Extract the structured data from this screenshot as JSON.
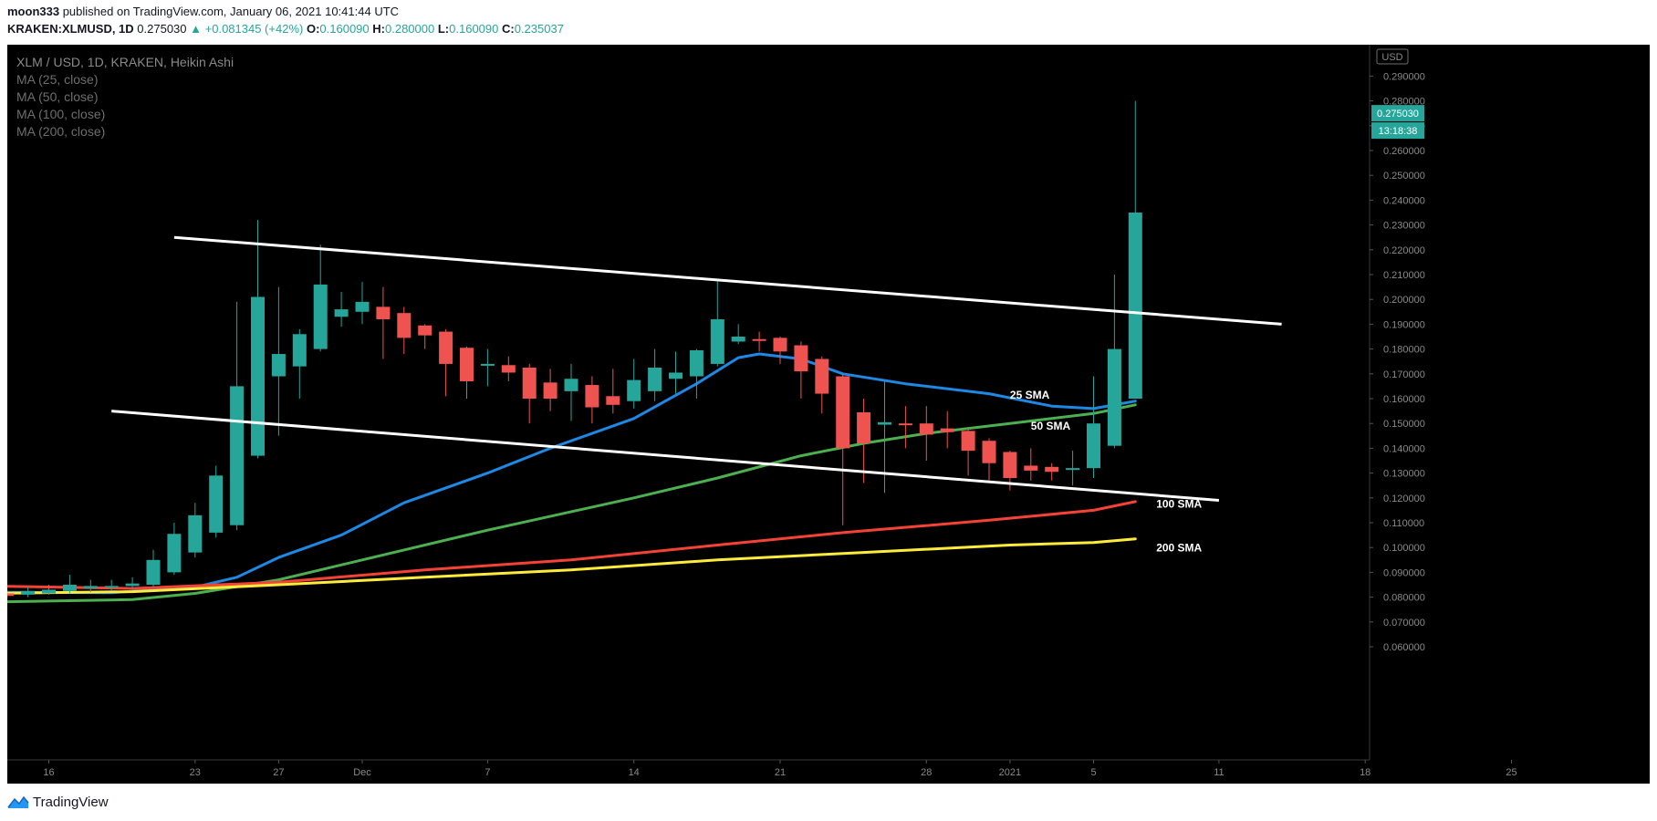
{
  "header": {
    "author": "moon333",
    "published": "published on TradingView.com, January 06, 2021 10:41:44 UTC",
    "symbol": "KRAKEN:XLMUSD, 1D",
    "last_price": "0.275030",
    "change": "▲ +0.081345 (+42%)",
    "open_label": "O:",
    "open": "0.160090",
    "high_label": "H:",
    "high": "0.280000",
    "low_label": "L:",
    "low": "0.160090",
    "close_label": "C:",
    "close": "0.235037"
  },
  "legend": {
    "main": "XLM / USD, 1D, KRAKEN, Heikin Ashi",
    "indicators": [
      "MA (25, close)",
      "MA (50, close)",
      "MA (100, close)",
      "MA (200, close)"
    ]
  },
  "price_axis": {
    "currency_tag": "USD",
    "current_price_tag": "0.275030",
    "countdown_tag": "13:18:38"
  },
  "annotations": [
    "25 SMA",
    "50 SMA",
    "100 SMA",
    "200 SMA"
  ],
  "footer": {
    "brand": "TradingView"
  },
  "colors": {
    "background": "#000000",
    "up": "#26a69a",
    "down": "#ef5350",
    "sma25": "#1e88e5",
    "sma50": "#4caf50",
    "sma100": "#f44336",
    "sma200": "#ffeb3b",
    "trendline": "#ffffff"
  },
  "chart_data": {
    "type": "candlestick",
    "chart_style": "Heikin Ashi",
    "title": "XLM / USD, 1D, KRAKEN, Heikin Ashi",
    "ylim": [
      0.057,
      0.301
    ],
    "y_ticks": [
      "0.060000",
      "0.070000",
      "0.080000",
      "0.090000",
      "0.100000",
      "0.110000",
      "0.120000",
      "0.130000",
      "0.140000",
      "0.150000",
      "0.160000",
      "0.170000",
      "0.180000",
      "0.190000",
      "0.200000",
      "0.210000",
      "0.220000",
      "0.230000",
      "0.240000",
      "0.250000",
      "0.260000",
      "0.270000",
      "0.280000",
      "0.290000"
    ],
    "x_ticks": [
      {
        "label": "16",
        "date": "2020-11-16"
      },
      {
        "label": "23",
        "date": "2020-11-23"
      },
      {
        "label": "27",
        "date": "2020-11-27"
      },
      {
        "label": "Dec",
        "date": "2020-12-01"
      },
      {
        "label": "7",
        "date": "2020-12-07"
      },
      {
        "label": "14",
        "date": "2020-12-14"
      },
      {
        "label": "21",
        "date": "2020-12-21"
      },
      {
        "label": "28",
        "date": "2020-12-28"
      },
      {
        "label": "2021",
        "date": "2021-01-01"
      },
      {
        "label": "5",
        "date": "2021-01-05"
      },
      {
        "label": "11",
        "date": "2021-01-11"
      },
      {
        "label": "18",
        "date": "2021-01-18"
      },
      {
        "label": "25",
        "date": "2021-01-25"
      }
    ],
    "candles": [
      {
        "date": "2020-11-13",
        "o": 0.082,
        "h": 0.084,
        "l": 0.08,
        "c": 0.081
      },
      {
        "date": "2020-11-14",
        "o": 0.0815,
        "h": 0.083,
        "l": 0.0795,
        "c": 0.0805
      },
      {
        "date": "2020-11-15",
        "o": 0.081,
        "h": 0.084,
        "l": 0.08,
        "c": 0.0825
      },
      {
        "date": "2020-11-16",
        "o": 0.0815,
        "h": 0.085,
        "l": 0.081,
        "c": 0.083
      },
      {
        "date": "2020-11-17",
        "o": 0.0825,
        "h": 0.089,
        "l": 0.0815,
        "c": 0.085
      },
      {
        "date": "2020-11-18",
        "o": 0.0835,
        "h": 0.087,
        "l": 0.082,
        "c": 0.0845
      },
      {
        "date": "2020-11-19",
        "o": 0.084,
        "h": 0.087,
        "l": 0.0825,
        "c": 0.0845
      },
      {
        "date": "2020-11-20",
        "o": 0.0845,
        "h": 0.088,
        "l": 0.083,
        "c": 0.0855
      },
      {
        "date": "2020-11-21",
        "o": 0.085,
        "h": 0.099,
        "l": 0.084,
        "c": 0.095
      },
      {
        "date": "2020-11-22",
        "o": 0.09,
        "h": 0.11,
        "l": 0.089,
        "c": 0.1055
      },
      {
        "date": "2020-11-23",
        "o": 0.098,
        "h": 0.118,
        "l": 0.096,
        "c": 0.113
      },
      {
        "date": "2020-11-24",
        "o": 0.106,
        "h": 0.133,
        "l": 0.104,
        "c": 0.129
      },
      {
        "date": "2020-11-25",
        "o": 0.109,
        "h": 0.199,
        "l": 0.107,
        "c": 0.165
      },
      {
        "date": "2020-11-26",
        "o": 0.137,
        "h": 0.232,
        "l": 0.136,
        "c": 0.201
      },
      {
        "date": "2020-11-27",
        "o": 0.169,
        "h": 0.205,
        "l": 0.145,
        "c": 0.178
      },
      {
        "date": "2020-11-28",
        "o": 0.173,
        "h": 0.188,
        "l": 0.16,
        "c": 0.186
      },
      {
        "date": "2020-11-29",
        "o": 0.18,
        "h": 0.222,
        "l": 0.179,
        "c": 0.206
      },
      {
        "date": "2020-11-30",
        "o": 0.193,
        "h": 0.203,
        "l": 0.189,
        "c": 0.196
      },
      {
        "date": "2020-12-01",
        "o": 0.195,
        "h": 0.207,
        "l": 0.19,
        "c": 0.199
      },
      {
        "date": "2020-12-02",
        "o": 0.197,
        "h": 0.205,
        "l": 0.176,
        "c": 0.192
      },
      {
        "date": "2020-12-03",
        "o": 0.1945,
        "h": 0.197,
        "l": 0.178,
        "c": 0.1845
      },
      {
        "date": "2020-12-04",
        "o": 0.1895,
        "h": 0.19,
        "l": 0.18,
        "c": 0.1855
      },
      {
        "date": "2020-12-05",
        "o": 0.187,
        "h": 0.188,
        "l": 0.161,
        "c": 0.174
      },
      {
        "date": "2020-12-06",
        "o": 0.1805,
        "h": 0.181,
        "l": 0.16,
        "c": 0.167
      },
      {
        "date": "2020-12-07",
        "o": 0.174,
        "h": 0.18,
        "l": 0.165,
        "c": 0.174
      },
      {
        "date": "2020-12-08",
        "o": 0.1735,
        "h": 0.177,
        "l": 0.167,
        "c": 0.1705
      },
      {
        "date": "2020-12-09",
        "o": 0.1725,
        "h": 0.174,
        "l": 0.15,
        "c": 0.16
      },
      {
        "date": "2020-12-10",
        "o": 0.1665,
        "h": 0.172,
        "l": 0.155,
        "c": 0.16
      },
      {
        "date": "2020-12-11",
        "o": 0.163,
        "h": 0.174,
        "l": 0.151,
        "c": 0.168
      },
      {
        "date": "2020-12-12",
        "o": 0.1655,
        "h": 0.169,
        "l": 0.15,
        "c": 0.1565
      },
      {
        "date": "2020-12-13",
        "o": 0.161,
        "h": 0.172,
        "l": 0.154,
        "c": 0.1575
      },
      {
        "date": "2020-12-14",
        "o": 0.159,
        "h": 0.176,
        "l": 0.156,
        "c": 0.1675
      },
      {
        "date": "2020-12-15",
        "o": 0.163,
        "h": 0.18,
        "l": 0.159,
        "c": 0.1725
      },
      {
        "date": "2020-12-16",
        "o": 0.168,
        "h": 0.179,
        "l": 0.162,
        "c": 0.1705
      },
      {
        "date": "2020-12-17",
        "o": 0.169,
        "h": 0.18,
        "l": 0.16,
        "c": 0.1795
      },
      {
        "date": "2020-12-18",
        "o": 0.174,
        "h": 0.208,
        "l": 0.173,
        "c": 0.192
      },
      {
        "date": "2020-12-19",
        "o": 0.183,
        "h": 0.19,
        "l": 0.182,
        "c": 0.185
      },
      {
        "date": "2020-12-20",
        "o": 0.184,
        "h": 0.187,
        "l": 0.179,
        "c": 0.1835
      },
      {
        "date": "2020-12-21",
        "o": 0.1845,
        "h": 0.185,
        "l": 0.174,
        "c": 0.179
      },
      {
        "date": "2020-12-22",
        "o": 0.1815,
        "h": 0.183,
        "l": 0.16,
        "c": 0.171
      },
      {
        "date": "2020-12-23",
        "o": 0.176,
        "h": 0.177,
        "l": 0.154,
        "c": 0.162
      },
      {
        "date": "2020-12-24",
        "o": 0.169,
        "h": 0.17,
        "l": 0.109,
        "c": 0.14
      },
      {
        "date": "2020-12-25",
        "o": 0.1545,
        "h": 0.16,
        "l": 0.126,
        "c": 0.142
      },
      {
        "date": "2020-12-26",
        "o": 0.1495,
        "h": 0.167,
        "l": 0.122,
        "c": 0.1505
      },
      {
        "date": "2020-12-27",
        "o": 0.15,
        "h": 0.157,
        "l": 0.14,
        "c": 0.1495
      },
      {
        "date": "2020-12-28",
        "o": 0.15,
        "h": 0.157,
        "l": 0.135,
        "c": 0.1455
      },
      {
        "date": "2020-12-29",
        "o": 0.148,
        "h": 0.155,
        "l": 0.14,
        "c": 0.1465
      },
      {
        "date": "2020-12-30",
        "o": 0.147,
        "h": 0.148,
        "l": 0.129,
        "c": 0.139
      },
      {
        "date": "2020-12-31",
        "o": 0.143,
        "h": 0.144,
        "l": 0.127,
        "c": 0.134
      },
      {
        "date": "2021-01-01",
        "o": 0.1385,
        "h": 0.139,
        "l": 0.123,
        "c": 0.128
      },
      {
        "date": "2021-01-02",
        "o": 0.133,
        "h": 0.14,
        "l": 0.127,
        "c": 0.131
      },
      {
        "date": "2021-01-03",
        "o": 0.1325,
        "h": 0.134,
        "l": 0.127,
        "c": 0.1305
      },
      {
        "date": "2021-01-04",
        "o": 0.1315,
        "h": 0.139,
        "l": 0.125,
        "c": 0.132
      },
      {
        "date": "2021-01-05",
        "o": 0.132,
        "h": 0.169,
        "l": 0.128,
        "c": 0.15
      },
      {
        "date": "2021-01-06",
        "o": 0.141,
        "h": 0.21,
        "l": 0.14,
        "c": 0.18
      },
      {
        "date": "2021-01-07",
        "o": 0.16,
        "h": 0.28,
        "l": 0.16,
        "c": 0.235
      }
    ],
    "moving_averages": [
      {
        "name": "25 SMA",
        "color": "#1e88e5",
        "points": [
          [
            "2020-11-13",
            0.082
          ],
          [
            "2020-11-19",
            0.0818
          ],
          [
            "2020-11-23",
            0.084
          ],
          [
            "2020-11-25",
            0.088
          ],
          [
            "2020-11-27",
            0.096
          ],
          [
            "2020-11-30",
            0.105
          ],
          [
            "2020-12-03",
            0.118
          ],
          [
            "2020-12-07",
            0.13
          ],
          [
            "2020-12-10",
            0.14
          ],
          [
            "2020-12-14",
            0.152
          ],
          [
            "2020-12-17",
            0.166
          ],
          [
            "2020-12-19",
            0.1765
          ],
          [
            "2020-12-20",
            0.178
          ],
          [
            "2020-12-22",
            0.176
          ],
          [
            "2020-12-24",
            0.17
          ],
          [
            "2020-12-27",
            0.166
          ],
          [
            "2020-12-31",
            0.162
          ],
          [
            "2021-01-03",
            0.157
          ],
          [
            "2021-01-05",
            0.156
          ],
          [
            "2021-01-07",
            0.159
          ]
        ]
      },
      {
        "name": "50 SMA",
        "color": "#4caf50",
        "points": [
          [
            "2020-11-13",
            0.078
          ],
          [
            "2020-11-20",
            0.079
          ],
          [
            "2020-11-23",
            0.0815
          ],
          [
            "2020-11-27",
            0.087
          ],
          [
            "2020-12-01",
            0.095
          ],
          [
            "2020-12-07",
            0.107
          ],
          [
            "2020-12-14",
            0.12
          ],
          [
            "2020-12-18",
            0.128
          ],
          [
            "2020-12-22",
            0.137
          ],
          [
            "2020-12-25",
            0.142
          ],
          [
            "2020-12-28",
            0.146
          ],
          [
            "2021-01-01",
            0.15
          ],
          [
            "2021-01-05",
            0.154
          ],
          [
            "2021-01-07",
            0.1575
          ]
        ]
      },
      {
        "name": "100 SMA",
        "color": "#f44336",
        "points": [
          [
            "2020-11-13",
            0.0845
          ],
          [
            "2020-11-20",
            0.0835
          ],
          [
            "2020-11-27",
            0.086
          ],
          [
            "2020-12-04",
            0.091
          ],
          [
            "2020-12-11",
            0.095
          ],
          [
            "2020-12-18",
            0.101
          ],
          [
            "2020-12-24",
            0.106
          ],
          [
            "2020-12-31",
            0.111
          ],
          [
            "2021-01-05",
            0.115
          ],
          [
            "2021-01-07",
            0.1185
          ]
        ]
      },
      {
        "name": "200 SMA",
        "color": "#ffeb3b",
        "points": [
          [
            "2020-11-13",
            0.0815
          ],
          [
            "2020-11-20",
            0.0822
          ],
          [
            "2020-11-27",
            0.085
          ],
          [
            "2020-12-04",
            0.088
          ],
          [
            "2020-12-11",
            0.091
          ],
          [
            "2020-12-18",
            0.095
          ],
          [
            "2020-12-25",
            0.098
          ],
          [
            "2021-01-01",
            0.101
          ],
          [
            "2021-01-05",
            0.102
          ],
          [
            "2021-01-07",
            0.1035
          ]
        ]
      }
    ],
    "trendlines": [
      {
        "name": "upper-channel",
        "from": [
          "2020-11-22",
          0.225
        ],
        "to": [
          "2021-01-14",
          0.19
        ]
      },
      {
        "name": "lower-channel",
        "from": [
          "2020-11-19",
          0.155
        ],
        "to": [
          "2021-01-11",
          0.119
        ]
      }
    ],
    "labels": [
      {
        "text": "25 SMA",
        "at": [
          "2021-01-01",
          0.16
        ]
      },
      {
        "text": "50 SMA",
        "at": [
          "2021-01-02",
          0.1475
        ]
      },
      {
        "text": "100 SMA",
        "at": [
          "2021-01-08",
          0.116
        ]
      },
      {
        "text": "200 SMA",
        "at": [
          "2021-01-08",
          0.0985
        ]
      }
    ]
  }
}
